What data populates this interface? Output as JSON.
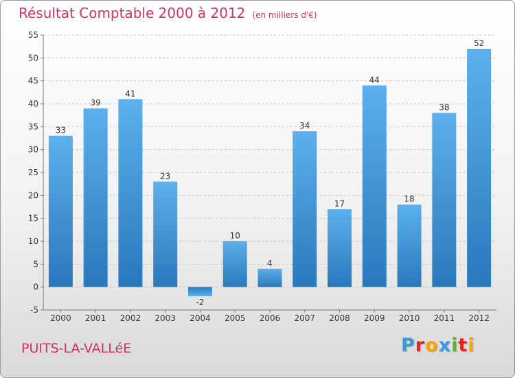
{
  "chart_data": {
    "type": "bar",
    "title": "Résultat Comptable 2000 à 2012",
    "subtitle": "(en milliers d'€)",
    "categories": [
      "2000",
      "2001",
      "2002",
      "2003",
      "2004",
      "2005",
      "2006",
      "2007",
      "2008",
      "2009",
      "2010",
      "2011",
      "2012"
    ],
    "values": [
      33,
      39,
      41,
      23,
      -2,
      10,
      4,
      34,
      17,
      44,
      18,
      38,
      52
    ],
    "ylim": [
      -5,
      55
    ],
    "yticks": [
      -5,
      0,
      5,
      10,
      15,
      20,
      25,
      30,
      35,
      40,
      45,
      50,
      55
    ],
    "grid": true,
    "bar_color": "#3a8fd8"
  },
  "footer": {
    "city": "PUITS-LA-VALLéE",
    "logo_letters": [
      "P",
      "r",
      "o",
      "x",
      "i",
      "t",
      "i"
    ],
    "logo_colors": [
      "#3a9ad9",
      "#e2261c",
      "#f6a500",
      "#3a9ad9",
      "#5cb531",
      "#e2261c",
      "#f6a500"
    ]
  }
}
